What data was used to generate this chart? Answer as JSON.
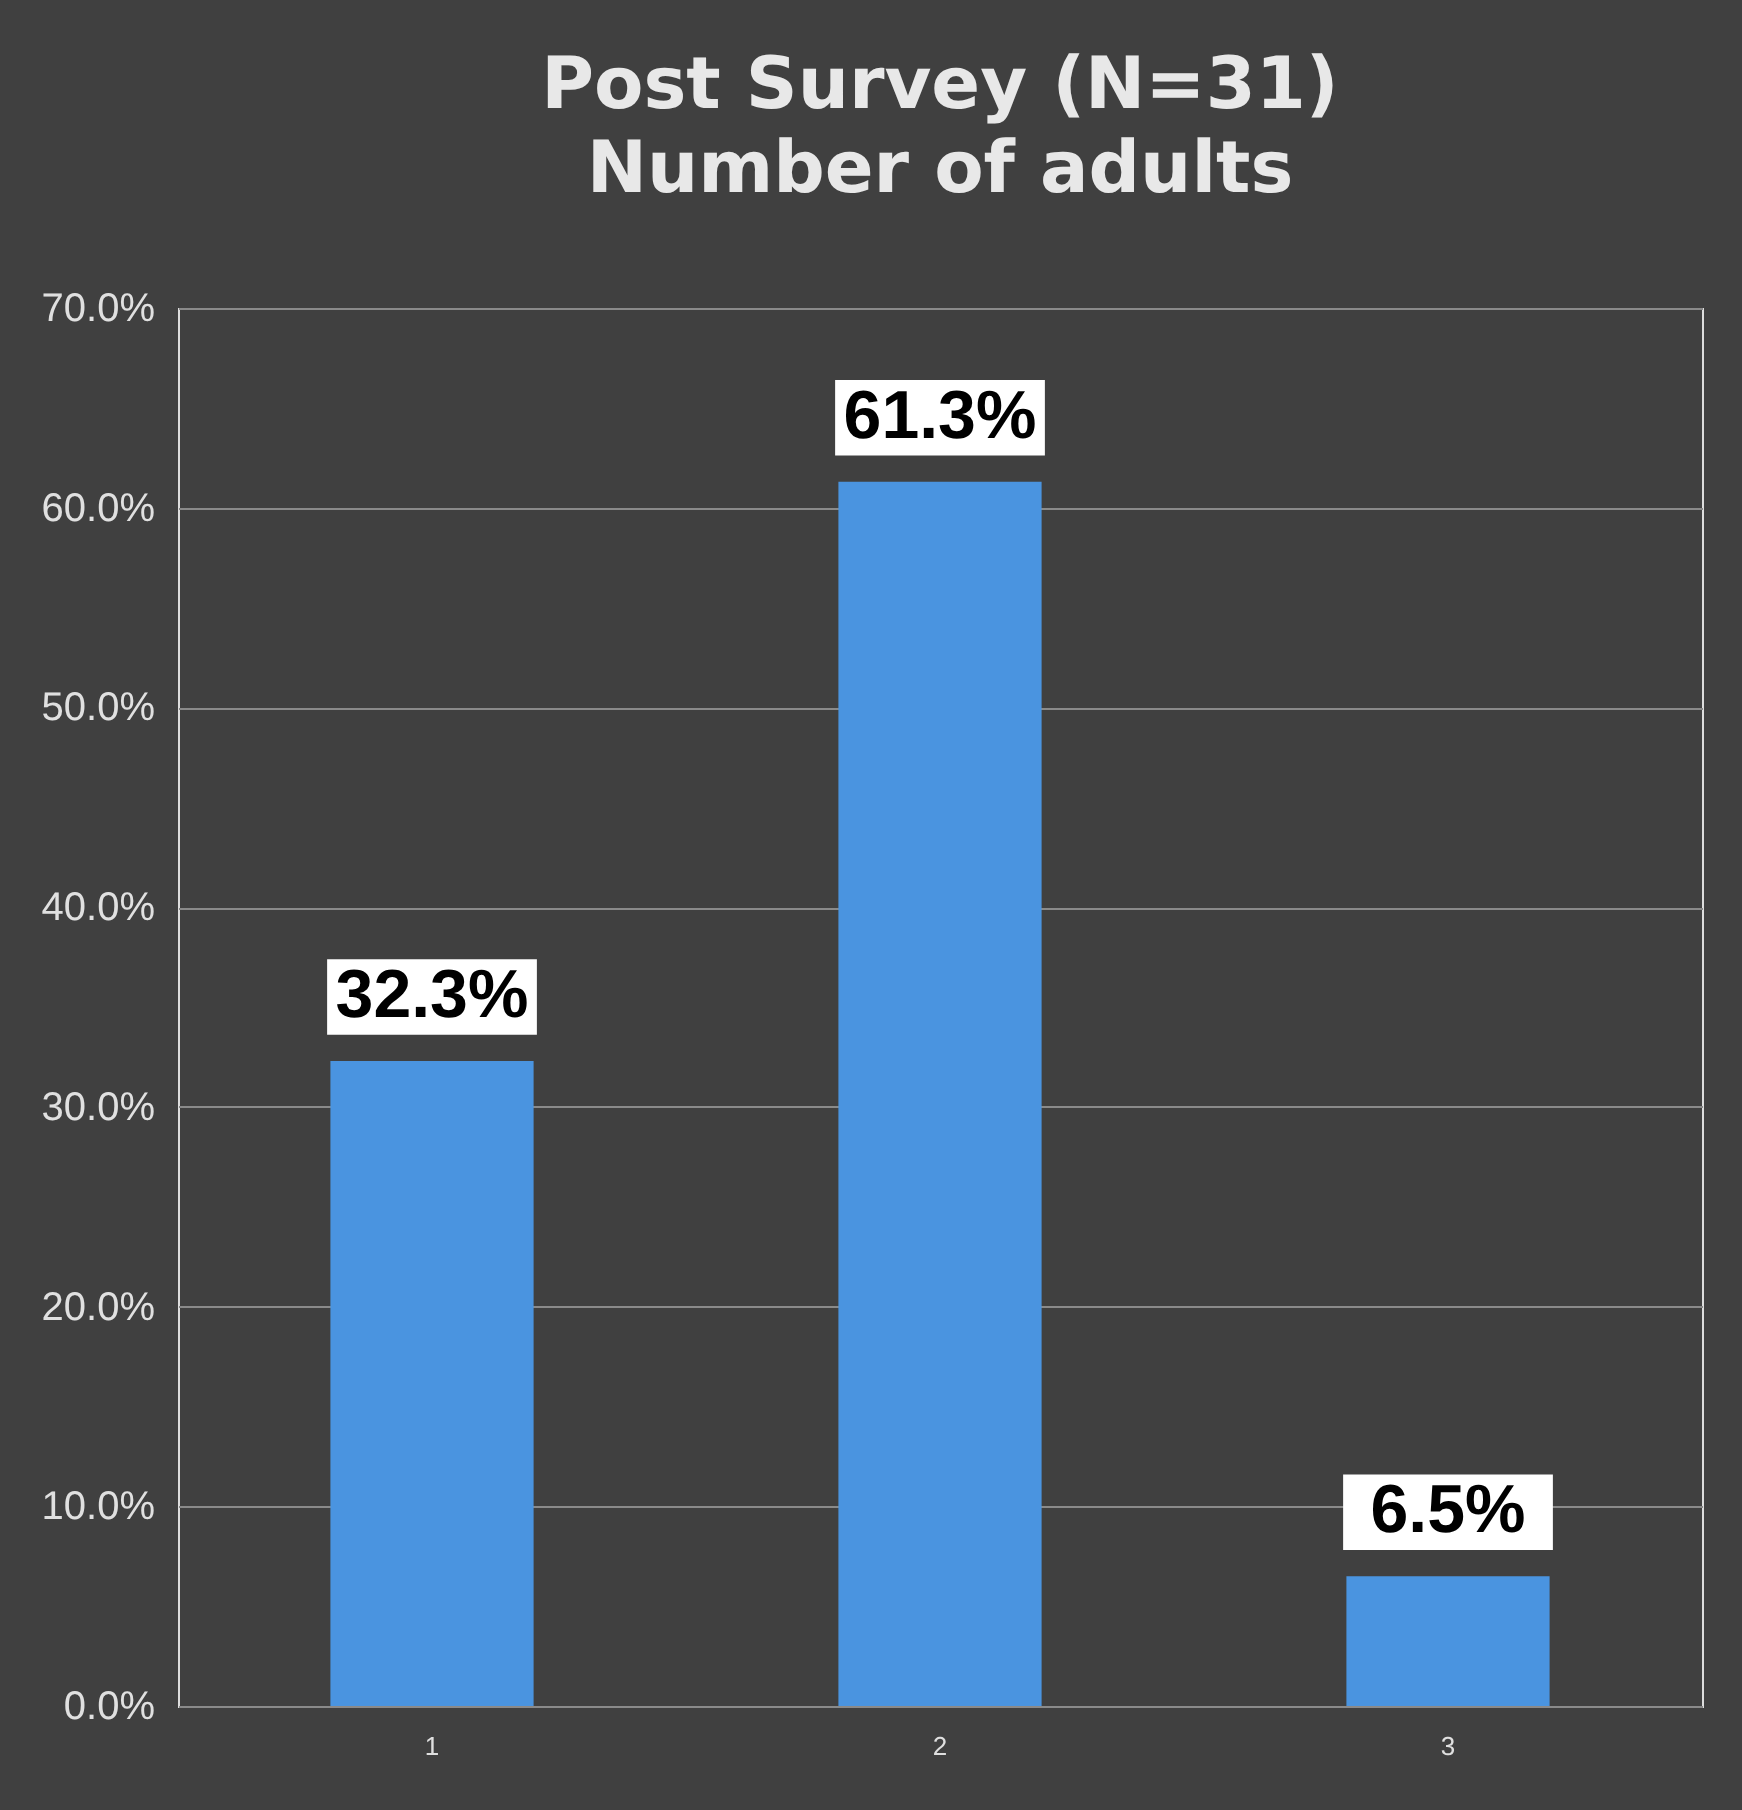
{
  "chart_data": {
    "type": "bar",
    "title": "Post Survey (N=31)",
    "subtitle": "Number of adults",
    "categories": [
      "1",
      "2",
      "3"
    ],
    "values": [
      32.3,
      61.3,
      6.5
    ],
    "value_labels": [
      "32.3%",
      "61.3%",
      "6.5%"
    ],
    "color": "#4a94e0",
    "ylim": [
      0,
      70
    ],
    "yticks": [
      {
        "value": 0,
        "label": "0.0%"
      },
      {
        "value": 10,
        "label": "10.0%"
      },
      {
        "value": 20,
        "label": "20.0%"
      },
      {
        "value": 30,
        "label": "30.0%"
      },
      {
        "value": 40,
        "label": "40.0%"
      },
      {
        "value": 50,
        "label": "50.0%"
      },
      {
        "value": 60,
        "label": "60.0%"
      },
      {
        "value": 70,
        "label": "70.0%"
      }
    ],
    "grid": "y"
  }
}
